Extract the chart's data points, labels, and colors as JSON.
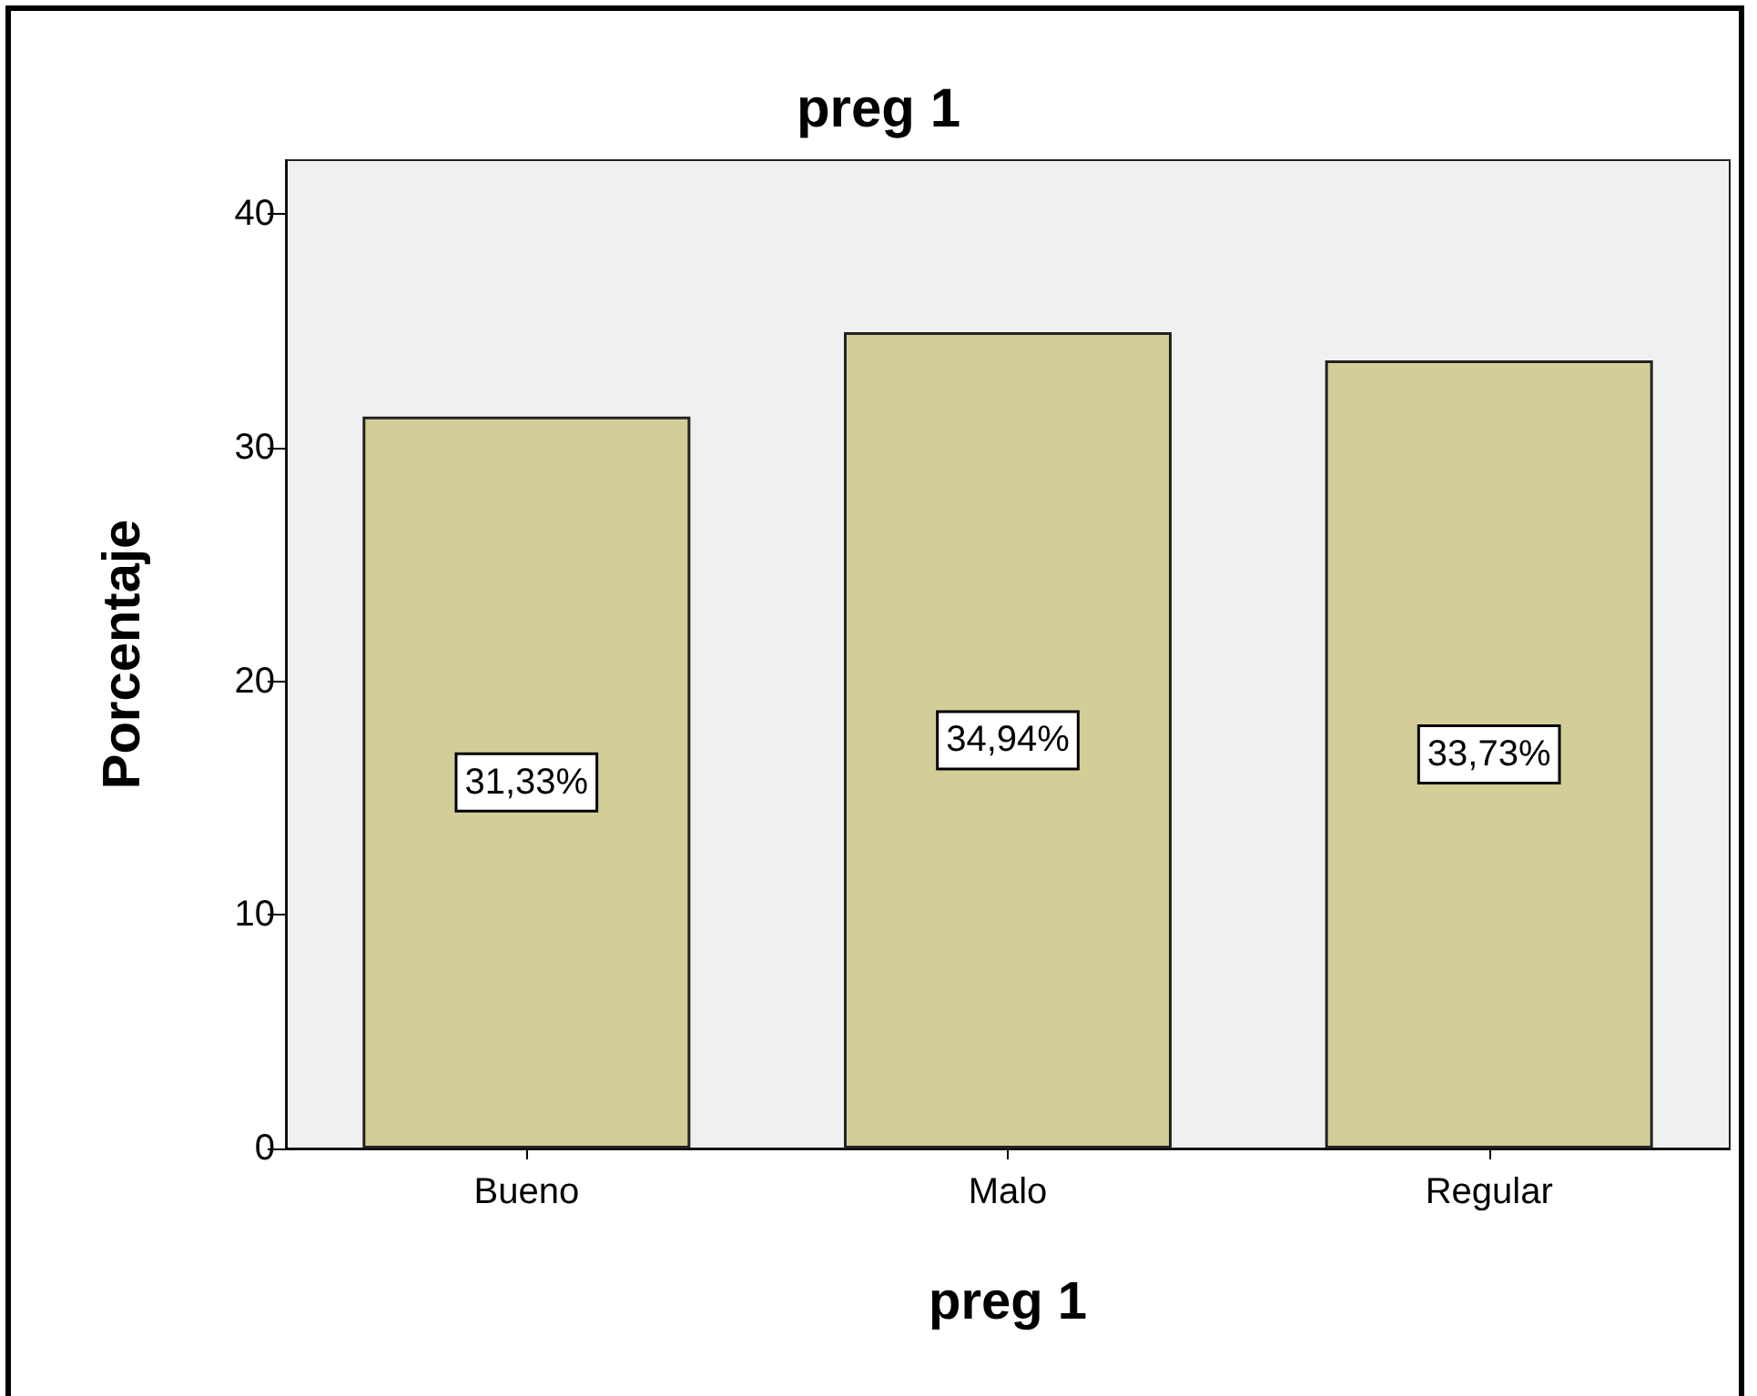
{
  "chart_data": {
    "type": "bar",
    "title": "preg 1",
    "xlabel": "preg 1",
    "ylabel": "Porcentaje",
    "categories": [
      "Bueno",
      "Malo",
      "Regular"
    ],
    "values": [
      31.33,
      34.94,
      33.73
    ],
    "value_labels": [
      "31,33%",
      "34,94%",
      "33,73%"
    ],
    "color": "#d3ce98",
    "ylim": [
      0,
      42.3
    ],
    "yticks": [
      0,
      10,
      20,
      30,
      40
    ],
    "grid": false
  }
}
